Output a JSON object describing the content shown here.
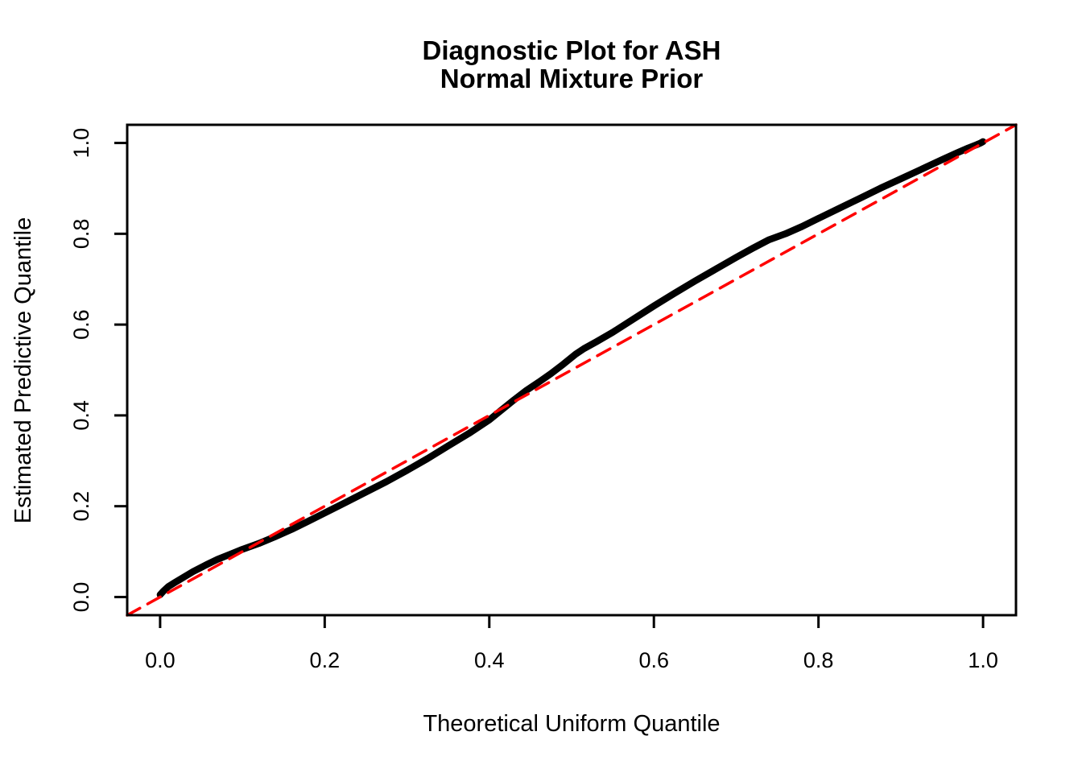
{
  "figure": {
    "background": "#ffffff",
    "title_line1": "Diagnostic Plot for ASH",
    "title_line2": "Normal Mixture Prior"
  },
  "chart_data": {
    "type": "line",
    "title": "Diagnostic Plot for ASH",
    "subtitle": "Normal Mixture Prior",
    "xlabel": "Theoretical Uniform Quantile",
    "ylabel": "Estimated Predictive Quantile",
    "xlim": [
      -0.04,
      1.04
    ],
    "ylim": [
      -0.04,
      1.04
    ],
    "grid": false,
    "legend": null,
    "axis_color": "#000000",
    "x_ticks": {
      "values": [
        0.0,
        0.2,
        0.4,
        0.6,
        0.8,
        1.0
      ],
      "labels": [
        "0.0",
        "0.2",
        "0.4",
        "0.6",
        "0.8",
        "1.0"
      ]
    },
    "y_ticks": {
      "values": [
        0.0,
        0.2,
        0.4,
        0.6,
        0.8,
        1.0
      ],
      "labels": [
        "0.0",
        "0.2",
        "0.4",
        "0.6",
        "0.8",
        "1.0"
      ]
    },
    "series": [
      {
        "name": "estimated_predictive_quantiles",
        "style": "thick-solid",
        "color": "#000000",
        "stroke_width": 8.5,
        "points": [
          [
            0.0,
            0.005
          ],
          [
            0.004,
            0.013
          ],
          [
            0.01,
            0.023
          ],
          [
            0.018,
            0.032
          ],
          [
            0.028,
            0.043
          ],
          [
            0.04,
            0.056
          ],
          [
            0.055,
            0.07
          ],
          [
            0.07,
            0.083
          ],
          [
            0.085,
            0.094
          ],
          [
            0.1,
            0.105
          ],
          [
            0.12,
            0.118
          ],
          [
            0.14,
            0.133
          ],
          [
            0.16,
            0.149
          ],
          [
            0.18,
            0.167
          ],
          [
            0.2,
            0.185
          ],
          [
            0.225,
            0.208
          ],
          [
            0.25,
            0.231
          ],
          [
            0.275,
            0.254
          ],
          [
            0.3,
            0.279
          ],
          [
            0.325,
            0.305
          ],
          [
            0.35,
            0.333
          ],
          [
            0.375,
            0.36
          ],
          [
            0.4,
            0.39
          ],
          [
            0.415,
            0.412
          ],
          [
            0.43,
            0.434
          ],
          [
            0.445,
            0.455
          ],
          [
            0.46,
            0.473
          ],
          [
            0.475,
            0.492
          ],
          [
            0.49,
            0.513
          ],
          [
            0.505,
            0.535
          ],
          [
            0.515,
            0.547
          ],
          [
            0.53,
            0.562
          ],
          [
            0.55,
            0.583
          ],
          [
            0.575,
            0.612
          ],
          [
            0.6,
            0.641
          ],
          [
            0.625,
            0.669
          ],
          [
            0.65,
            0.696
          ],
          [
            0.675,
            0.722
          ],
          [
            0.7,
            0.748
          ],
          [
            0.72,
            0.768
          ],
          [
            0.74,
            0.787
          ],
          [
            0.76,
            0.8
          ],
          [
            0.78,
            0.816
          ],
          [
            0.8,
            0.834
          ],
          [
            0.825,
            0.856
          ],
          [
            0.85,
            0.878
          ],
          [
            0.875,
            0.9
          ],
          [
            0.9,
            0.921
          ],
          [
            0.925,
            0.942
          ],
          [
            0.95,
            0.963
          ],
          [
            0.968,
            0.978
          ],
          [
            0.982,
            0.989
          ],
          [
            0.992,
            0.996
          ],
          [
            0.997,
            1.0
          ],
          [
            1.0,
            1.003
          ]
        ]
      },
      {
        "name": "identity_reference_line",
        "style": "dashed",
        "color": "#FF0000",
        "stroke_width": 3.5,
        "dash": "18,11",
        "points": [
          [
            -0.04,
            -0.04
          ],
          [
            1.04,
            1.04
          ]
        ]
      }
    ]
  }
}
